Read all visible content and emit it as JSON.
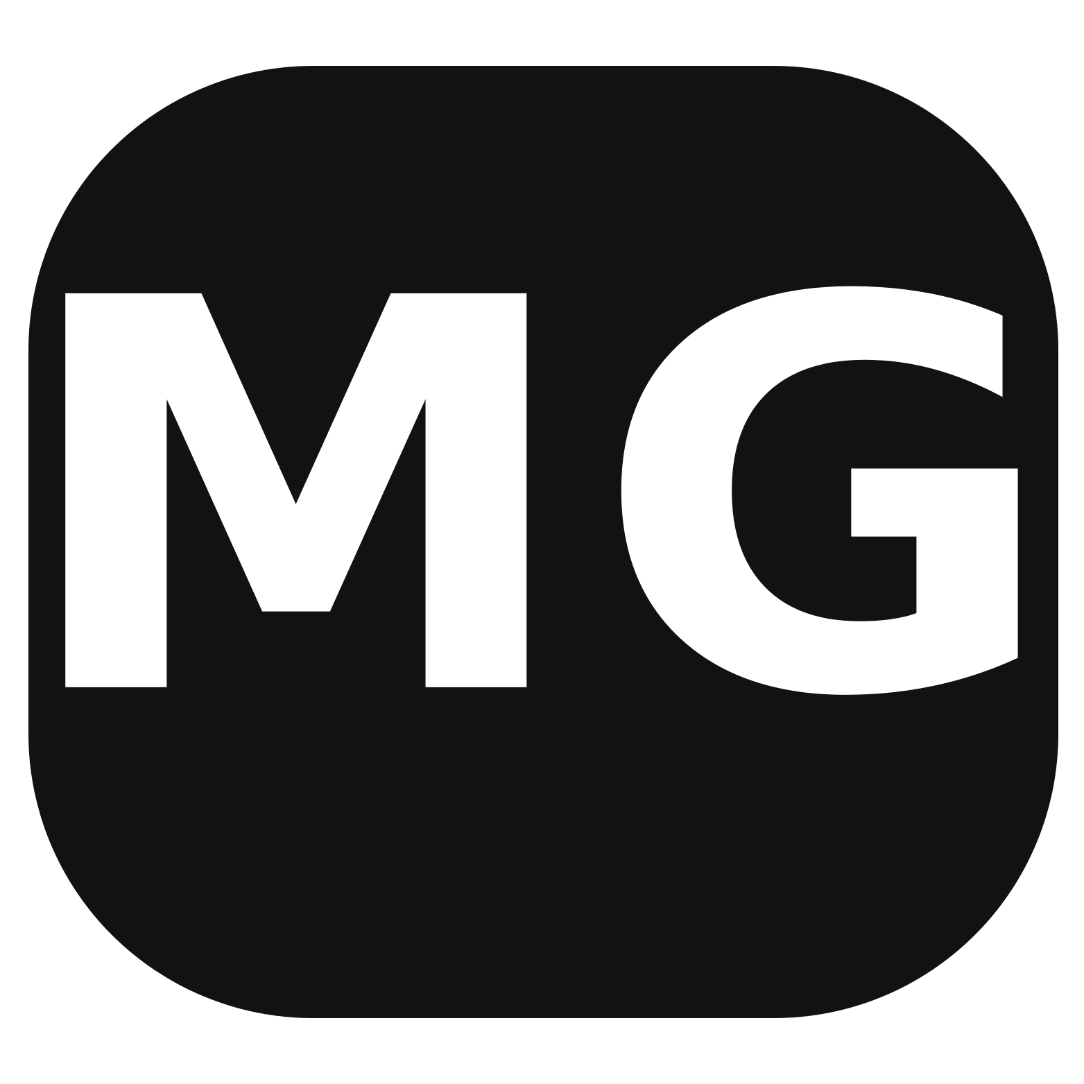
{
  "badge": {
    "text": "MG",
    "background_color": "#121212",
    "text_color": "#ffffff",
    "page_background": "#ffffff"
  }
}
